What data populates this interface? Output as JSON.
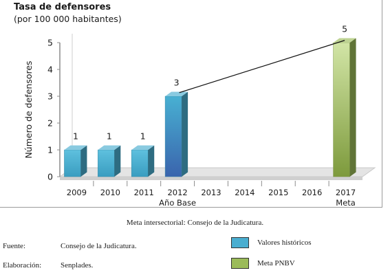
{
  "header": {
    "title": "Tasa de defensores",
    "subtitle": "(por 100 000 habitantes)"
  },
  "chart_data": {
    "type": "bar",
    "title": "Tasa de defensores",
    "subtitle": "(por 100 000 habitantes)",
    "ylabel": "Número de defensores",
    "xlabel": "",
    "ylim": [
      0,
      5
    ],
    "yticks": [
      "0",
      "1",
      "2",
      "3",
      "4",
      "5"
    ],
    "categories": [
      "2009",
      "2010",
      "2011",
      "2012",
      "2013",
      "2014",
      "2015",
      "2016",
      "2017"
    ],
    "category_sublabels": {
      "2012": "Año Base",
      "2017": "Meta"
    },
    "series": [
      {
        "name": "Valores históricos",
        "color": "#4aaed0",
        "values": [
          1,
          1,
          1,
          3,
          null,
          null,
          null,
          null,
          null
        ]
      },
      {
        "name": "Meta PNBV",
        "color": "#9bbb59",
        "values": [
          null,
          null,
          null,
          null,
          null,
          null,
          null,
          null,
          5
        ]
      }
    ],
    "data_labels": [
      "1",
      "1",
      "1",
      "3",
      "",
      "",
      "",
      "",
      "5"
    ],
    "trend_line": {
      "from": [
        "2012",
        3
      ],
      "to": [
        "2017",
        5
      ]
    },
    "grid": false,
    "legend_position": "bottom-right"
  },
  "footer": {
    "note": "Meta intersectorial: Consejo de la Judicatura.",
    "source_label": "Fuente:",
    "source_value": "Consejo de la Judicatura.",
    "elaboration_label": "Elaboración:",
    "elaboration_value": "Senplades."
  },
  "legend": {
    "items": [
      {
        "label": "Valores históricos",
        "color": "#4aaed0"
      },
      {
        "label": "Meta PNBV",
        "color": "#9bbb59"
      }
    ]
  }
}
